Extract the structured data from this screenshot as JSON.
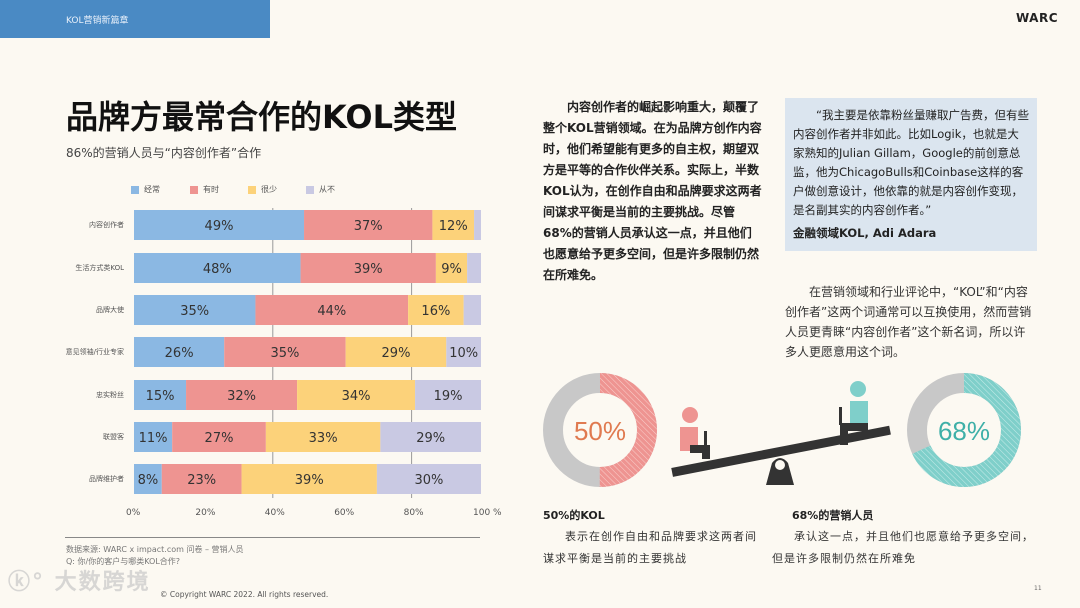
{
  "header": {
    "section": "KOL营销新篇章",
    "brand": "WARC"
  },
  "title": "品牌方最常合作的KOL类型",
  "subtitle": "86%的营销人员与“内容创作者”合作",
  "colors": {
    "often": "#8bb8e3",
    "sometimes": "#ee9491",
    "rarely": "#fcd27a",
    "never": "#c9c9e3",
    "header": "#4a8ac4"
  },
  "chart_data": {
    "type": "bar",
    "orientation": "horizontal-stacked-100",
    "categories": [
      "内容创作者",
      "生活方式类KOL",
      "品牌大使",
      "意见领袖/行业专家",
      "忠实粉丝",
      "联盟客",
      "品牌维护者"
    ],
    "series": [
      {
        "name": "经常",
        "values": [
          49,
          48,
          35,
          26,
          15,
          11,
          8
        ],
        "labels": [
          "49%",
          "48%",
          "35%",
          "26%",
          "15%",
          "11%",
          "8%"
        ]
      },
      {
        "name": "有时",
        "values": [
          37,
          39,
          44,
          35,
          32,
          27,
          23
        ],
        "labels": [
          "37%",
          "39%",
          "44%",
          "35%",
          "32%",
          "27%",
          "23%"
        ]
      },
      {
        "name": "很少",
        "values": [
          12,
          9,
          16,
          29,
          34,
          33,
          39
        ],
        "labels": [
          "12%",
          "9%",
          "16%",
          "29%",
          "34%",
          "33%",
          "39%"
        ]
      },
      {
        "name": "从不",
        "values": [
          2,
          4,
          5,
          10,
          19,
          29,
          30
        ],
        "labels": [
          "",
          "",
          "",
          "10%",
          "19%",
          "29%",
          "30%"
        ]
      }
    ],
    "xlim": [
      0,
      100
    ],
    "xticks": [
      "0%",
      "20%",
      "40%",
      "60%",
      "80%",
      "100 %"
    ],
    "legend": "top",
    "grid": "vertical at 40% and 80%"
  },
  "source": [
    "数据来源: WARC x impact.com 问卷 – 营销人员",
    "Q: 你/你的客户与哪类KOL合作?"
  ],
  "copyright": "© Copyright WARC 2022. All rights reserved.",
  "watermark": "大数跨境",
  "paragraph1": "内容创作者的崛起影响重大，颠覆了整个KOL营销领域。在为品牌方创作内容时，他们希望能有更多的自主权，期望双方是平等的合作伙伴关系。实际上，半数KOL认为，在创作自由和品牌要求这两者间谋求平衡是当前的主要挑战。尽管68%的营销人员承认这一点，并且他们也愿意给予更多空间，但是许多限制仍然在所难免。",
  "quote": {
    "text": "“我主要是依靠粉丝量赚取广告费，但有些内容创作者并非如此。比如Logik，也就是大家熟知的Julian Gillam，Google的前创意总监，他为ChicagoBulls和Coinbase这样的客户做创意设计，他依靠的就是内容创作变现，是名副其实的内容创作者。”",
    "attribution": "金融领域KOL, Adi Adara"
  },
  "paragraph2": "在营销领域和行业评论中，“KOL”和“内容创作者”这两个词通常可以互换使用，然而营销人员更青睐“内容创作者”这个新名词，所以许多人更愿意用这个词。",
  "stats": [
    {
      "value": 50,
      "label": "50%",
      "heading": "50%的KOL",
      "text": "表示在创作自由和品牌要求这两者间谋求平衡是当前的主要挑战",
      "color": "#ee9491",
      "text_color": "#e07a50"
    },
    {
      "value": 68,
      "label": "68%",
      "heading": "68%的营销人员",
      "text": "承认这一点，并且他们也愿意给予更多空间，但是许多限制仍然在所难免",
      "color": "#7fcfca",
      "text_color": "#3fb0a8"
    }
  ],
  "page_number": "11"
}
